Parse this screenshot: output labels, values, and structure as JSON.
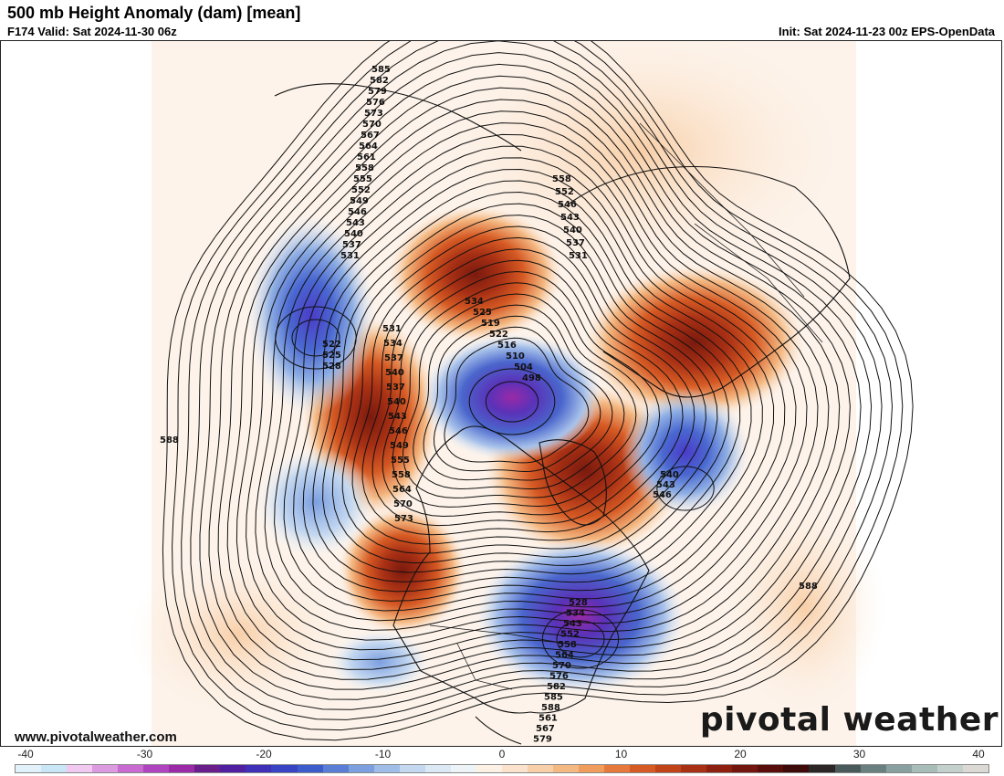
{
  "header": {
    "title": "500 mb Height Anomaly (dam) [mean]",
    "valid": "F174 Valid: Sat 2024-11-30 06z",
    "init": "Init: Sat 2024-11-23 00z EPS-OpenData"
  },
  "footer": {
    "website": "www.pivotalweather.com",
    "brand": "pivotal weather"
  },
  "colorbar": {
    "tick_labels": [
      "-40",
      "-30",
      "-20",
      "-10",
      "0",
      "10",
      "20",
      "30",
      "40"
    ],
    "range": [
      -40,
      40
    ],
    "colors_negative": [
      "#e2f2fb",
      "#c9e6f7",
      "#f0c8f0",
      "#dc9be0",
      "#c86ad0",
      "#b043c0",
      "#9a2aa8",
      "#6a1e8c",
      "#5020a0",
      "#4030b8",
      "#3844c4",
      "#3c5ccc",
      "#5a7ed6",
      "#7c9fe0",
      "#a0bde8",
      "#c4d8f0",
      "#dce8f4",
      "#eef3f8"
    ],
    "colors_positive": [
      "#fdf1e6",
      "#fbe2cc",
      "#f8cfa8",
      "#f4b882",
      "#ef9c5c",
      "#e5783a",
      "#d65a24",
      "#c04418",
      "#a83014",
      "#8e2010",
      "#72160e",
      "#5a0e0c",
      "#3e0a0a",
      "#2c2626",
      "#4a5a5a",
      "#6a8080",
      "#88a0a0",
      "#a8bcb8",
      "#c4d0cc",
      "#dcd8d4"
    ]
  },
  "map": {
    "contour_labels": {
      "north_pacific_upper": [
        "585",
        "582",
        "579",
        "576",
        "573",
        "570",
        "567",
        "564",
        "561",
        "558",
        "555",
        "552",
        "549",
        "546",
        "543",
        "540",
        "537",
        "531"
      ],
      "alaska_gulf": [
        "522",
        "525",
        "528"
      ],
      "west_coast": [
        "531",
        "534",
        "537",
        "540",
        "537",
        "540",
        "543",
        "546",
        "549",
        "555",
        "558",
        "564",
        "570",
        "573"
      ],
      "arctic_low": [
        "534",
        "525",
        "519",
        "522",
        "516",
        "510",
        "504",
        "498"
      ],
      "siberia": [
        "558",
        "552",
        "546",
        "543",
        "540",
        "537",
        "531"
      ],
      "greenland_atlantic": [
        "540",
        "543",
        "546"
      ],
      "eastern_us_trough": [
        "528",
        "534",
        "543",
        "552",
        "558",
        "564",
        "570",
        "576",
        "582",
        "585",
        "588",
        "561",
        "567",
        "579"
      ],
      "subtropical": [
        "588",
        "588"
      ]
    },
    "anomaly_centers": [
      {
        "name": "north-pacific-negative",
        "sign": "negative"
      },
      {
        "name": "central-arctic-negative",
        "sign": "negative"
      },
      {
        "name": "great-lakes-negative",
        "sign": "negative"
      },
      {
        "name": "north-atlantic-negative",
        "sign": "negative"
      },
      {
        "name": "east-pacific-negative",
        "sign": "negative"
      },
      {
        "name": "subtropical-pacific-negative",
        "sign": "negative"
      },
      {
        "name": "alaska-positive",
        "sign": "positive"
      },
      {
        "name": "east-siberia-positive",
        "sign": "positive"
      },
      {
        "name": "greenland-positive",
        "sign": "positive"
      },
      {
        "name": "northern-europe-positive",
        "sign": "positive"
      },
      {
        "name": "west-coast-positive",
        "sign": "positive"
      }
    ]
  }
}
